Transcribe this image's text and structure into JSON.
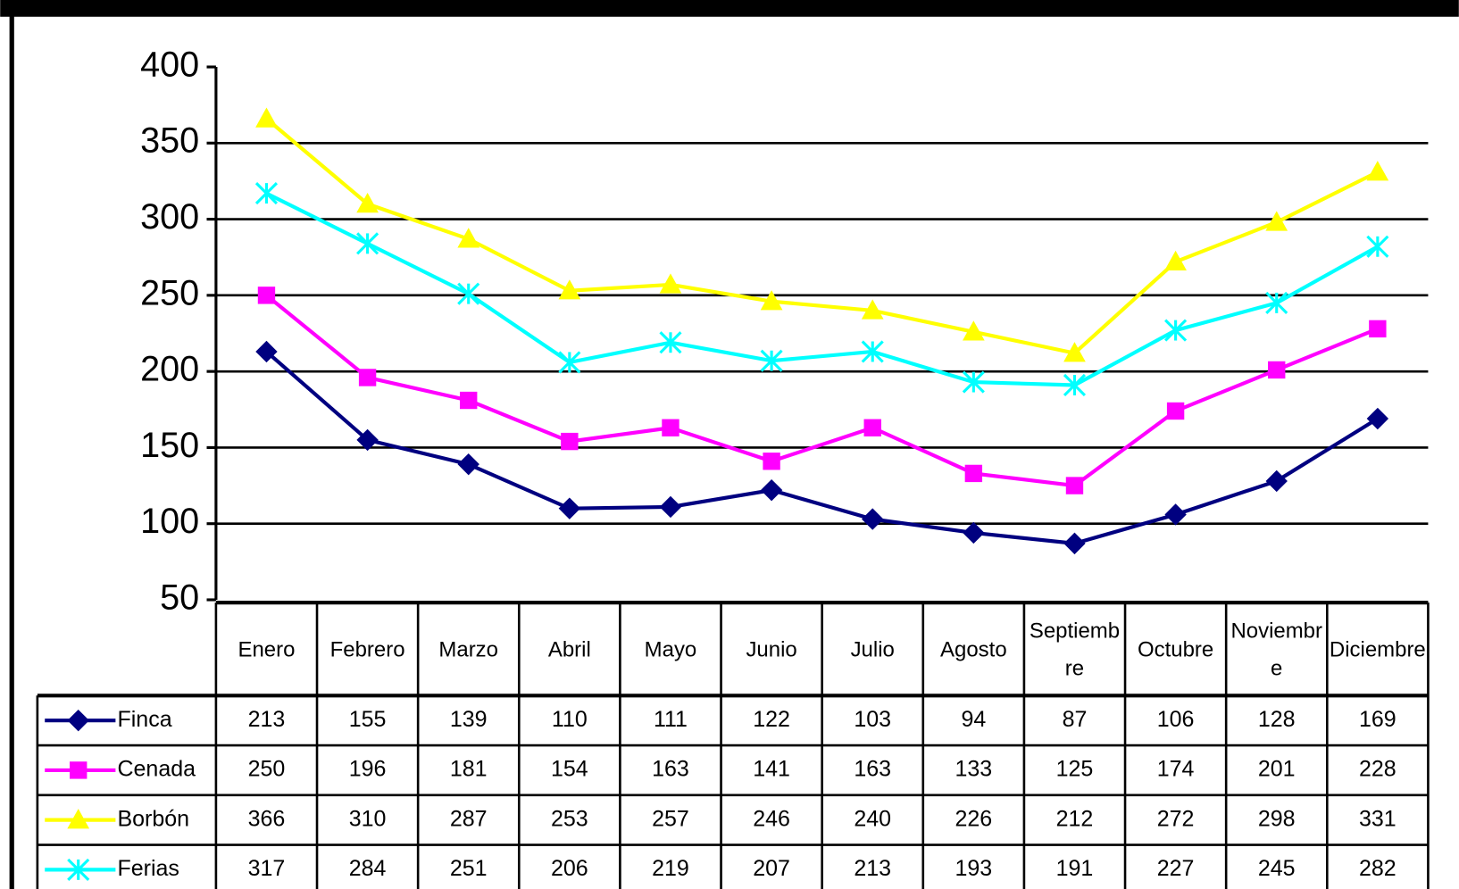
{
  "chart_data": {
    "type": "line",
    "categories": [
      "Enero",
      "Febrero",
      "Marzo",
      "Abril",
      "Mayo",
      "Junio",
      "Julio",
      "Agosto",
      "Septiembre",
      "Octubre",
      "Noviembre",
      "Diciembre"
    ],
    "series": [
      {
        "name": "Finca",
        "color": "#000080",
        "marker": "diamond",
        "values": [
          213,
          155,
          139,
          110,
          111,
          122,
          103,
          94,
          87,
          106,
          128,
          169
        ]
      },
      {
        "name": "Cenada",
        "color": "#ff00ff",
        "marker": "square",
        "values": [
          250,
          196,
          181,
          154,
          163,
          141,
          163,
          133,
          125,
          174,
          201,
          228
        ]
      },
      {
        "name": "Borbón",
        "color": "#ffff00",
        "marker": "triangle",
        "values": [
          366,
          310,
          287,
          253,
          257,
          246,
          240,
          226,
          212,
          272,
          298,
          331
        ]
      },
      {
        "name": "Ferias",
        "color": "#00ffff",
        "marker": "star",
        "values": [
          317,
          284,
          251,
          206,
          219,
          207,
          213,
          193,
          191,
          227,
          245,
          282
        ]
      }
    ],
    "ylim": [
      50,
      400
    ],
    "yticks": [
      50,
      100,
      150,
      200,
      250,
      300,
      350,
      400
    ],
    "grid": true
  }
}
